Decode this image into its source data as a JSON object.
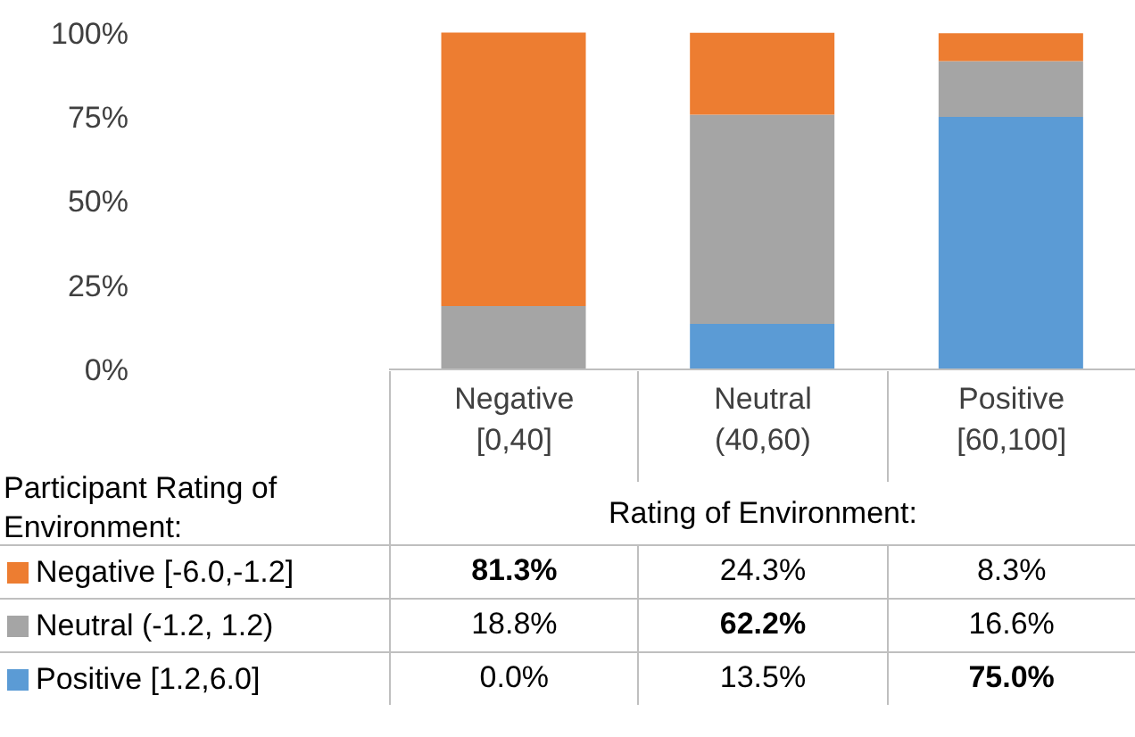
{
  "chart_data": {
    "type": "bar",
    "stacked": true,
    "categories": [
      "Negative [0,40]",
      "Neutral (40,60)",
      "Positive [60,100]"
    ],
    "series": [
      {
        "name": "Positive [1.2,6.0]",
        "color": "#5b9bd5",
        "values": [
          0.0,
          13.5,
          75.0
        ],
        "value_labels": [
          "0.0%",
          "13.5%",
          "75.0%"
        ]
      },
      {
        "name": "Neutral (-1.2, 1.2)",
        "color": "#a5a5a5",
        "values": [
          18.8,
          62.2,
          16.6
        ],
        "value_labels": [
          "18.8%",
          "62.2%",
          "16.6%"
        ]
      },
      {
        "name": "Negative [-6.0,-1.2]",
        "color": "#ed7d31",
        "values": [
          81.3,
          24.3,
          8.3
        ],
        "value_labels": [
          "81.3%",
          "24.3%",
          "8.3%"
        ]
      }
    ],
    "ylim": [
      0,
      100.2
    ],
    "yticks": [
      {
        "value": 0,
        "label": "0%"
      },
      {
        "value": 25,
        "label": "25%"
      },
      {
        "value": 50,
        "label": "50%"
      },
      {
        "value": 75,
        "label": "75%"
      },
      {
        "value": 100,
        "label": "100%"
      }
    ],
    "xlabel": "Rating of Environment:",
    "legend_title": "Participant Rating of Environment:",
    "legend": "bottom",
    "grid": false
  }
}
